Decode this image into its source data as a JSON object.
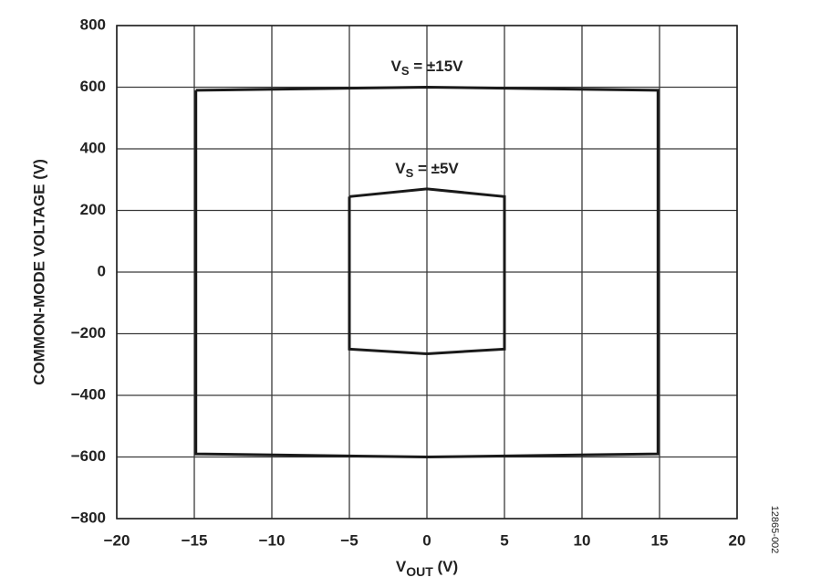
{
  "chart_data": {
    "type": "line",
    "ylabel": "COMMON-MODE VOLTAGE (V)",
    "xlabel": {
      "text": "V",
      "sub": "OUT",
      "rest": " (V)"
    },
    "side_note": "12865-002",
    "xlim": [
      -20,
      20
    ],
    "xticks": [
      {
        "value": -20,
        "label": "−20"
      },
      {
        "value": -15,
        "label": "−15"
      },
      {
        "value": -10,
        "label": "−10"
      },
      {
        "value": -5,
        "label": "−5"
      },
      0,
      5,
      10,
      15,
      20
    ],
    "ylim": [
      -800,
      800
    ],
    "yticks": [
      {
        "value": -800,
        "label": "−800"
      },
      {
        "value": -600,
        "label": "−600"
      },
      {
        "value": -400,
        "label": "−400"
      },
      {
        "value": -200,
        "label": "−200"
      },
      0,
      200,
      400,
      600,
      800
    ],
    "grid": true,
    "series": [
      {
        "name": {
          "text": "V",
          "sub": "S",
          "rest": " = ±15V"
        },
        "color": "#1a1a1a",
        "x": [
          -14.9,
          0,
          14.9,
          14.9,
          0,
          -14.9,
          -14.9
        ],
        "values": [
          590,
          600,
          590,
          -590,
          -600,
          -590,
          590
        ]
      },
      {
        "name": {
          "text": "V",
          "sub": "S",
          "rest": " = ±5V"
        },
        "color": "#1a1a1a",
        "x": [
          -5,
          0,
          5,
          5,
          0,
          -5,
          -5
        ],
        "values": [
          245,
          270,
          245,
          -250,
          -265,
          -250,
          245
        ]
      }
    ]
  }
}
